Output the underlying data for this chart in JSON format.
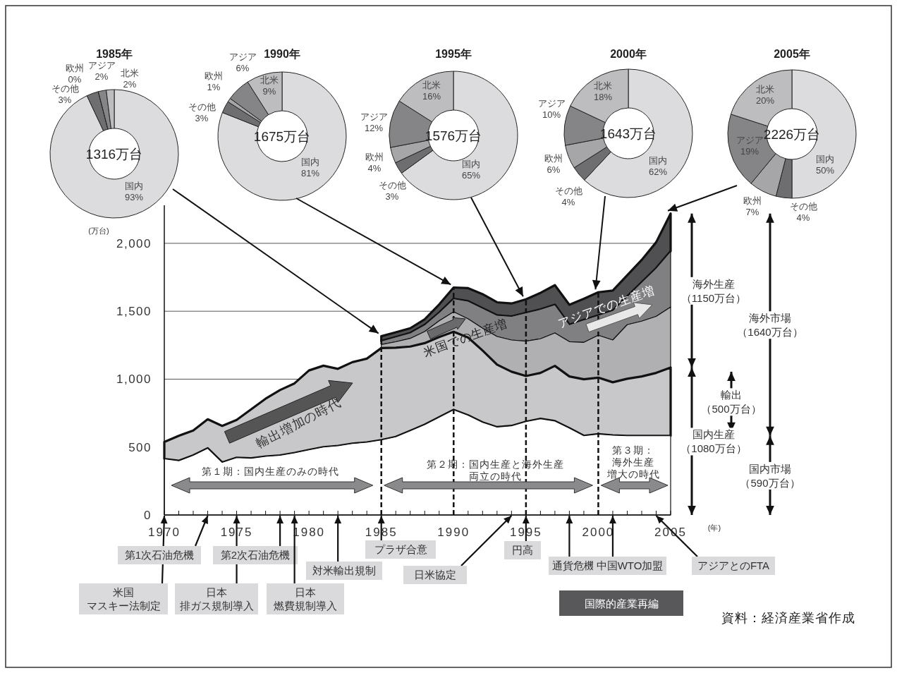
{
  "chart_data": [
    {
      "type": "donut",
      "title": "1985年",
      "categories": [
        "国内",
        "その他",
        "欧州",
        "アジア",
        "北米"
      ],
      "values": [
        93,
        3,
        0,
        2,
        2
      ],
      "colors": [
        "#dcdcde",
        "#6e6e70",
        "#a6a6a8",
        "#858588",
        "#bdbdbf"
      ],
      "value_labels": [
        "93%",
        "3%",
        "0%",
        "2%",
        "2%"
      ],
      "annotations": [
        "1316万台"
      ]
    },
    {
      "type": "donut",
      "title": "1990年",
      "categories": [
        "国内",
        "その他",
        "欧州",
        "アジア",
        "北米"
      ],
      "values": [
        81,
        3,
        1,
        6,
        9
      ],
      "colors": [
        "#dcdcde",
        "#6e6e70",
        "#a6a6a8",
        "#858588",
        "#bdbdbf"
      ],
      "value_labels": [
        "81%",
        "3%",
        "1%",
        "6%",
        "9%"
      ],
      "annotations": [
        "1675万台"
      ]
    },
    {
      "type": "donut",
      "title": "1995年",
      "categories": [
        "国内",
        "その他",
        "欧州",
        "アジア",
        "北米"
      ],
      "values": [
        65,
        3,
        4,
        12,
        16
      ],
      "colors": [
        "#dcdcde",
        "#6e6e70",
        "#a6a6a8",
        "#858588",
        "#bdbdbf"
      ],
      "value_labels": [
        "65%",
        "3%",
        "4%",
        "12%",
        "16%"
      ],
      "annotations": [
        "1576万台"
      ]
    },
    {
      "type": "donut",
      "title": "2000年",
      "categories": [
        "国内",
        "その他",
        "欧州",
        "アジア",
        "北米"
      ],
      "values": [
        62,
        4,
        6,
        10,
        18
      ],
      "colors": [
        "#dcdcde",
        "#6e6e70",
        "#a6a6a8",
        "#858588",
        "#bdbdbf"
      ],
      "value_labels": [
        "62%",
        "4%",
        "6%",
        "10%",
        "18%"
      ],
      "annotations": [
        "1643万台"
      ]
    },
    {
      "type": "donut",
      "title": "2005年",
      "categories": [
        "国内",
        "その他",
        "欧州",
        "アジア",
        "北米"
      ],
      "values": [
        50,
        4,
        7,
        19,
        20
      ],
      "colors": [
        "#dcdcde",
        "#6e6e70",
        "#a6a6a8",
        "#858588",
        "#bdbdbf"
      ],
      "value_labels": [
        "50%",
        "4%",
        "7%",
        "19%",
        "20%"
      ],
      "annotations": [
        "2226万台"
      ]
    },
    {
      "type": "area",
      "stacked": true,
      "xlabel": "(年)",
      "ylabel": "(万台)",
      "x": [
        1970,
        1971,
        1972,
        1973,
        1974,
        1975,
        1976,
        1977,
        1978,
        1979,
        1980,
        1981,
        1982,
        1983,
        1984,
        1985,
        1986,
        1987,
        1988,
        1989,
        1990,
        1991,
        1992,
        1993,
        1994,
        1995,
        1996,
        1997,
        1998,
        1999,
        2000,
        2001,
        2002,
        2003,
        2004,
        2005
      ],
      "series": [
        {
          "color": "#ffffff",
          "values": [
            413,
            399,
            439,
            491,
            387,
            422,
            417,
            431,
            439,
            457,
            479,
            500,
            509,
            526,
            535,
            552,
            575,
            620,
            665,
            720,
            774,
            734,
            682,
            647,
            656,
            687,
            708,
            691,
            639,
            583,
            595,
            587,
            583,
            583,
            583,
            583
          ]
        },
        {
          "color": "#c8c8ca",
          "values": [
            125,
            184,
            183,
            214,
            269,
            278,
            361,
            425,
            481,
            512,
            585,
            599,
            567,
            599,
            616,
            677,
            657,
            620,
            600,
            590,
            575,
            572,
            529,
            460,
            399,
            336,
            338,
            407,
            381,
            416,
            416,
            390,
            420,
            437,
            463,
            503
          ]
        },
        {
          "color": "#b0b0b2",
          "values": [
            null,
            null,
            null,
            null,
            null,
            null,
            null,
            null,
            null,
            null,
            null,
            null,
            null,
            null,
            null,
            26,
            43,
            60,
            85,
            120,
            147,
            138,
            164,
            207,
            233,
            257,
            251,
            242,
            256,
            272,
            312,
            311,
            398,
            407,
            416,
            445
          ]
        },
        {
          "color": "#808083",
          "values": [
            null,
            null,
            null,
            null,
            null,
            null,
            null,
            null,
            null,
            null,
            null,
            null,
            null,
            null,
            null,
            26,
            35,
            40,
            50,
            60,
            96,
            130,
            147,
            156,
            174,
            208,
            217,
            208,
            125,
            165,
            147,
            217,
            208,
            286,
            355,
            411
          ]
        },
        {
          "color": "#505053",
          "values": [
            null,
            null,
            null,
            null,
            null,
            null,
            null,
            null,
            null,
            null,
            null,
            null,
            null,
            null,
            null,
            35,
            35,
            35,
            40,
            60,
            83,
            96,
            104,
            96,
            95,
            100,
            121,
            144,
            147,
            156,
            170,
            147,
            156,
            165,
            191,
            277
          ]
        }
      ],
      "xlim": [
        1970,
        2005
      ],
      "xticks": [
        1970,
        {
          "value": 1971,
          "label": null
        },
        {
          "value": 1972,
          "label": null
        },
        {
          "value": 1973,
          "label": null
        },
        {
          "value": 1974,
          "label": null
        },
        1975,
        {
          "value": 1976,
          "label": null
        },
        {
          "value": 1977,
          "label": null
        },
        {
          "value": 1978,
          "label": null
        },
        {
          "value": 1979,
          "label": null
        },
        1980,
        {
          "value": 1981,
          "label": null
        },
        {
          "value": 1982,
          "label": null
        },
        {
          "value": 1983,
          "label": null
        },
        {
          "value": 1984,
          "label": null
        },
        1985,
        {
          "value": 1986,
          "label": null
        },
        {
          "value": 1987,
          "label": null
        },
        {
          "value": 1988,
          "label": null
        },
        {
          "value": 1989,
          "label": null
        },
        1990,
        {
          "value": 1991,
          "label": null
        },
        {
          "value": 1992,
          "label": null
        },
        {
          "value": 1993,
          "label": null
        },
        {
          "value": 1994,
          "label": null
        },
        1995,
        {
          "value": 1996,
          "label": null
        },
        {
          "value": 1997,
          "label": null
        },
        {
          "value": 1998,
          "label": null
        },
        {
          "value": 1999,
          "label": null
        },
        2000,
        {
          "value": 2001,
          "label": null
        },
        {
          "value": 2002,
          "label": null
        },
        {
          "value": 2003,
          "label": null
        },
        {
          "value": 2004,
          "label": null
        },
        2005
      ],
      "ylim": [
        0,
        2280
      ],
      "yticks": [
        0,
        500,
        {
          "value": 1000,
          "label": "1,000"
        },
        {
          "value": 1500,
          "label": "1,500"
        },
        {
          "value": 2000,
          "label": "2,000"
        }
      ],
      "grid": "y",
      "ref_lines": [
        {
          "axis": "x",
          "value": 1985,
          "line_style": "dashed"
        },
        {
          "axis": "x",
          "value": 1990,
          "line_style": "dashed"
        },
        {
          "axis": "x",
          "value": 1995,
          "line_style": "dashed"
        },
        {
          "axis": "x",
          "value": 2000,
          "line_style": "dashed"
        }
      ],
      "annotations": [
        "輸出増加の時代",
        "米国での生産増",
        "アジアでの生産増",
        "第１期：国内生産のみの時代",
        "第２期：国内生産と海外生産両立の時代",
        "第３期：海外生産増大の時代",
        "海外生産（1150万台）",
        "輸出（500万台）",
        "国内生産（1080万台）",
        "海外市場（1640万台）",
        "国内市場（590万台）",
        {
          "text": "米国マスキー法制定",
          "x": 1970,
          "y": 0
        },
        {
          "text": "第1次石油危機",
          "x": 1973,
          "y": 0
        },
        {
          "text": "日本排ガス規制導入",
          "x": 1975,
          "y": 0
        },
        {
          "text": "第2次石油危機",
          "x": 1978,
          "y": 0
        },
        {
          "text": "日本燃費規制導入",
          "x": 1979,
          "y": 0
        },
        {
          "text": "対米輸出規制",
          "x": 1982,
          "y": 0
        },
        {
          "text": "プラザ合意",
          "x": 1985,
          "y": 0
        },
        {
          "text": "日米協定",
          "x": 1994,
          "y": 0
        },
        {
          "text": "円高",
          "x": 1995,
          "y": 0
        },
        {
          "text": "通貨危機",
          "x": 1998,
          "y": 0
        },
        {
          "text": "中国WTO加盟",
          "x": 2001,
          "y": 0
        },
        {
          "text": "アジアとのFTA",
          "x": 2004,
          "y": 0
        },
        "国際的産業再編",
        "資料：経済産業省作成"
      ]
    }
  ]
}
